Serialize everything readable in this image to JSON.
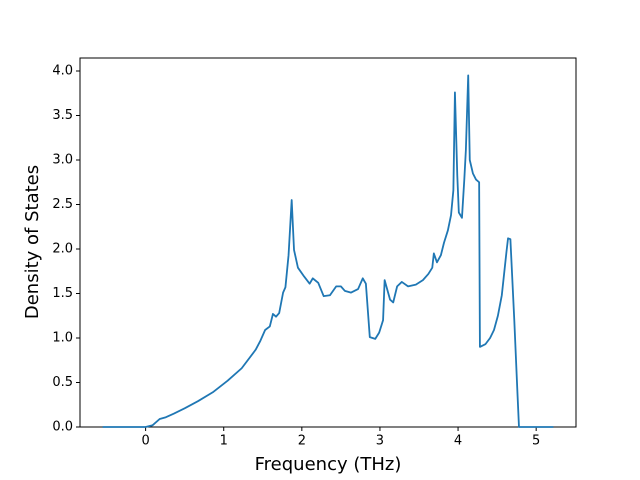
{
  "chart_data": {
    "type": "line",
    "xlabel": "Frequency (THz)",
    "ylabel": "Density of States",
    "color": "#1f77b4",
    "x": [
      -0.55,
      0,
      0.09,
      0.18,
      0.26,
      0.36,
      0.5,
      0.67,
      0.86,
      1.05,
      1.23,
      1.41,
      1.47,
      1.53,
      1.59,
      1.63,
      1.67,
      1.71,
      1.76,
      1.79,
      1.83,
      1.87,
      1.9,
      1.95,
      2.03,
      2.1,
      2.14,
      2.21,
      2.28,
      2.36,
      2.44,
      2.5,
      2.55,
      2.63,
      2.72,
      2.78,
      2.82,
      2.87,
      2.94,
      2.99,
      3.04,
      3.06,
      3.13,
      3.17,
      3.22,
      3.28,
      3.36,
      3.46,
      3.55,
      3.62,
      3.67,
      3.69,
      3.73,
      3.78,
      3.82,
      3.87,
      3.91,
      3.94,
      3.96,
      3.99,
      4.01,
      4.05,
      4.08,
      4.1,
      4.13,
      4.15,
      4.19,
      4.23,
      4.27,
      4.28,
      4.35,
      4.41,
      4.46,
      4.51,
      4.56,
      4.62,
      4.64,
      4.67,
      4.72,
      4.76,
      4.78,
      5.22
    ],
    "values": [
      0,
      0,
      0.02,
      0.09,
      0.11,
      0.15,
      0.21,
      0.29,
      0.39,
      0.52,
      0.66,
      0.87,
      0.97,
      1.09,
      1.13,
      1.27,
      1.24,
      1.28,
      1.51,
      1.57,
      1.93,
      2.55,
      1.99,
      1.79,
      1.69,
      1.61,
      1.67,
      1.62,
      1.47,
      1.48,
      1.58,
      1.58,
      1.53,
      1.51,
      1.55,
      1.67,
      1.61,
      1.01,
      0.99,
      1.06,
      1.2,
      1.65,
      1.43,
      1.4,
      1.58,
      1.63,
      1.58,
      1.6,
      1.65,
      1.72,
      1.79,
      1.95,
      1.85,
      1.93,
      2.07,
      2.21,
      2.38,
      2.66,
      3.76,
      2.83,
      2.41,
      2.35,
      2.78,
      3.11,
      3.95,
      3.0,
      2.85,
      2.78,
      2.75,
      0.9,
      0.93,
      1.0,
      1.09,
      1.25,
      1.48,
      1.97,
      2.12,
      2.11,
      1.2,
      0.39,
      0,
      0
    ],
    "xlim": [
      -0.84,
      5.51
    ],
    "xticks": [
      0,
      1,
      2,
      3,
      4,
      5
    ],
    "ylim": [
      0,
      4.146
    ],
    "yticks": [
      {
        "value": 0,
        "label": "0.0"
      },
      0.5,
      {
        "value": 1,
        "label": "1.0"
      },
      1.5,
      {
        "value": 2,
        "label": "2.0"
      },
      2.5,
      {
        "value": 3,
        "label": "3.0"
      },
      3.5,
      {
        "value": 4,
        "label": "4.0"
      }
    ]
  }
}
